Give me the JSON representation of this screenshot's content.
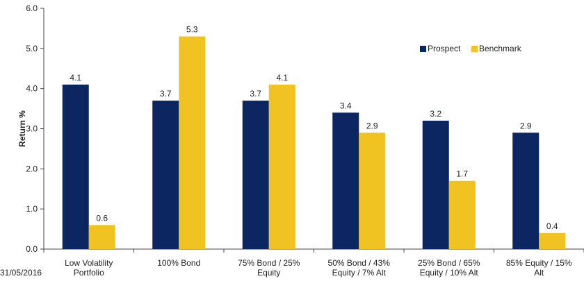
{
  "footer": {
    "date": "31/05/2016"
  },
  "chart_data": {
    "type": "bar",
    "title": "",
    "xlabel": "",
    "ylabel": "Return %",
    "ylim": [
      0,
      6
    ],
    "yticks": [
      "0.0",
      "1.0",
      "2.0",
      "3.0",
      "4.0",
      "5.0",
      "6.0"
    ],
    "grid": false,
    "legend_position": "top-right",
    "categories": [
      [
        "Low Volatility",
        "Portfolio"
      ],
      [
        "100% Bond"
      ],
      [
        "75% Bond / 25%",
        "Equity"
      ],
      [
        "50% Bond / 43%",
        "Equity / 7% Alt"
      ],
      [
        "25% Bond / 65%",
        "Equity / 10% Alt"
      ],
      [
        "85% Equity / 15%",
        "Alt"
      ]
    ],
    "series": [
      {
        "name": "Prospect",
        "color": "#0b2660",
        "values": [
          4.1,
          3.7,
          3.7,
          3.4,
          3.2,
          2.9
        ],
        "labels": [
          "4.1",
          "3.7",
          "3.7",
          "3.4",
          "3.2",
          "2.9"
        ]
      },
      {
        "name": "Benchmark",
        "color": "#f0c323",
        "values": [
          0.6,
          5.3,
          4.1,
          2.9,
          1.7,
          0.4
        ],
        "labels": [
          "0.6",
          "5.3",
          "4.1",
          "2.9",
          "1.7",
          "0.4"
        ]
      }
    ]
  }
}
